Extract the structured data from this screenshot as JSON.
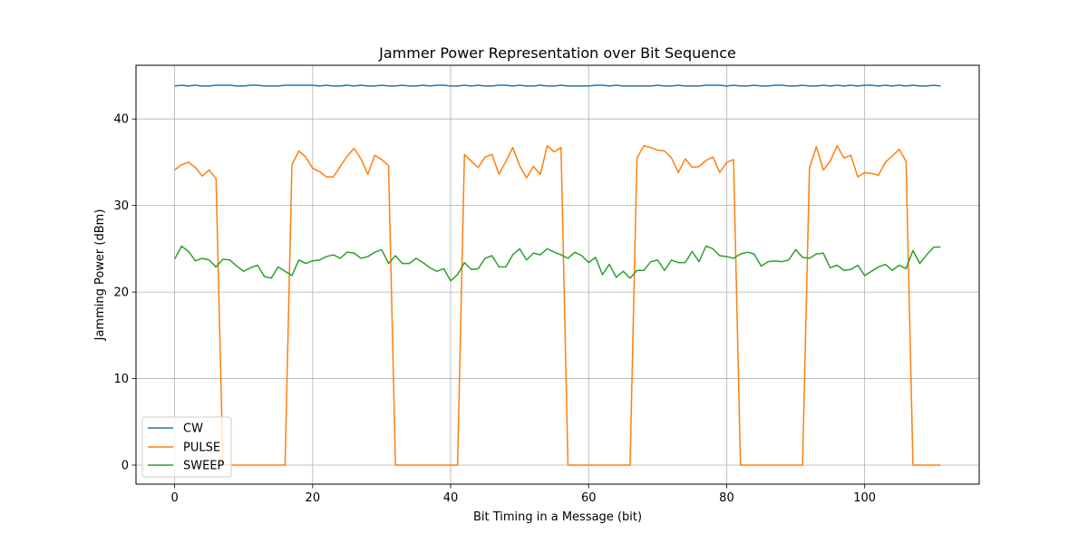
{
  "chart_data": {
    "type": "line",
    "title": "Jammer Power Representation over Bit Sequence",
    "xlabel": "Bit Timing in a Message (bit)",
    "ylabel": "Jamming Power (dBm)",
    "xlim": [
      -5.6,
      116.6
    ],
    "ylim": [
      -2.2,
      46.2
    ],
    "xticks": [
      0,
      20,
      40,
      60,
      80,
      100
    ],
    "yticks": [
      0,
      10,
      20,
      30,
      40
    ],
    "grid": true,
    "legend_position": "lower-left",
    "series": [
      {
        "name": "CW",
        "color": "#1f77b4",
        "values": [
          43.8,
          43.9,
          43.8,
          43.9,
          43.8,
          43.8,
          43.9,
          43.9,
          43.9,
          43.8,
          43.8,
          43.9,
          43.9,
          43.8,
          43.8,
          43.8,
          43.9,
          43.9,
          43.9,
          43.9,
          43.9,
          43.8,
          43.9,
          43.8,
          43.8,
          43.9,
          43.8,
          43.9,
          43.8,
          43.8,
          43.9,
          43.8,
          43.8,
          43.9,
          43.8,
          43.8,
          43.9,
          43.8,
          43.9,
          43.9,
          43.8,
          43.8,
          43.9,
          43.8,
          43.9,
          43.8,
          43.8,
          43.9,
          43.9,
          43.8,
          43.9,
          43.8,
          43.8,
          43.9,
          43.8,
          43.8,
          43.9,
          43.8,
          43.8,
          43.8,
          43.8,
          43.9,
          43.9,
          43.8,
          43.9,
          43.8,
          43.8,
          43.8,
          43.8,
          43.8,
          43.9,
          43.8,
          43.8,
          43.9,
          43.8,
          43.8,
          43.8,
          43.9,
          43.9,
          43.9,
          43.8,
          43.9,
          43.8,
          43.8,
          43.9,
          43.8,
          43.8,
          43.9,
          43.9,
          43.8,
          43.8,
          43.9,
          43.8,
          43.8,
          43.9,
          43.8,
          43.9,
          43.8,
          43.9,
          43.8,
          43.9,
          43.9,
          43.8,
          43.9,
          43.8,
          43.9,
          43.8,
          43.9,
          43.8,
          43.8,
          43.9,
          43.8
        ]
      },
      {
        "name": "PULSE",
        "color": "#ff7f0e",
        "values": [
          34.1,
          34.7,
          35.0,
          34.4,
          33.4,
          34.1,
          33.1,
          0,
          0,
          0,
          0,
          0,
          0,
          0,
          0,
          0,
          0,
          34.7,
          36.3,
          35.6,
          34.3,
          33.9,
          33.3,
          33.3,
          34.5,
          35.7,
          36.6,
          35.4,
          33.6,
          35.8,
          35.3,
          34.6,
          0,
          0,
          0,
          0,
          0,
          0,
          0,
          0,
          0,
          0,
          35.9,
          35.1,
          34.4,
          35.6,
          35.9,
          33.6,
          35.1,
          36.7,
          34.6,
          33.2,
          34.5,
          33.6,
          36.9,
          36.2,
          36.7,
          0,
          0,
          0,
          0,
          0,
          0,
          0,
          0,
          0,
          0,
          35.5,
          36.9,
          36.7,
          36.4,
          36.3,
          35.5,
          33.8,
          35.4,
          34.4,
          34.5,
          35.2,
          35.6,
          33.8,
          35.0,
          35.3,
          0,
          0,
          0,
          0,
          0,
          0,
          0,
          0,
          0,
          0,
          34.3,
          36.8,
          34.1,
          35.1,
          36.9,
          35.5,
          35.8,
          33.3,
          33.8,
          33.7,
          33.5,
          35.0,
          35.7,
          36.5,
          35.1,
          0,
          0,
          0,
          0,
          0
        ]
      },
      {
        "name": "SWEEP",
        "color": "#2ca02c",
        "values": [
          23.8,
          25.3,
          24.7,
          23.6,
          23.9,
          23.7,
          22.9,
          23.8,
          23.7,
          23.0,
          22.4,
          22.8,
          23.1,
          21.8,
          21.6,
          22.9,
          22.4,
          21.9,
          23.7,
          23.3,
          23.6,
          23.7,
          24.1,
          24.3,
          23.9,
          24.6,
          24.5,
          23.9,
          24.1,
          24.6,
          24.9,
          23.3,
          24.2,
          23.3,
          23.3,
          23.9,
          23.4,
          22.8,
          22.4,
          22.7,
          21.3,
          22.0,
          23.4,
          22.6,
          22.7,
          23.9,
          24.2,
          22.9,
          22.9,
          24.3,
          25.0,
          23.7,
          24.5,
          24.3,
          25.0,
          24.6,
          24.3,
          23.9,
          24.6,
          24.2,
          23.4,
          24.0,
          22.0,
          23.2,
          21.7,
          22.4,
          21.6,
          22.5,
          22.5,
          23.5,
          23.7,
          22.5,
          23.7,
          23.4,
          23.4,
          24.7,
          23.5,
          25.3,
          25.0,
          24.2,
          24.1,
          23.9,
          24.4,
          24.6,
          24.4,
          23.0,
          23.5,
          23.6,
          23.5,
          23.7,
          24.9,
          24.0,
          23.9,
          24.4,
          24.5,
          22.8,
          23.1,
          22.5,
          22.6,
          23.1,
          21.9,
          22.4,
          22.9,
          23.2,
          22.5,
          23.1,
          22.7,
          24.8,
          23.3,
          24.3,
          25.2,
          25.2
        ]
      }
    ]
  }
}
